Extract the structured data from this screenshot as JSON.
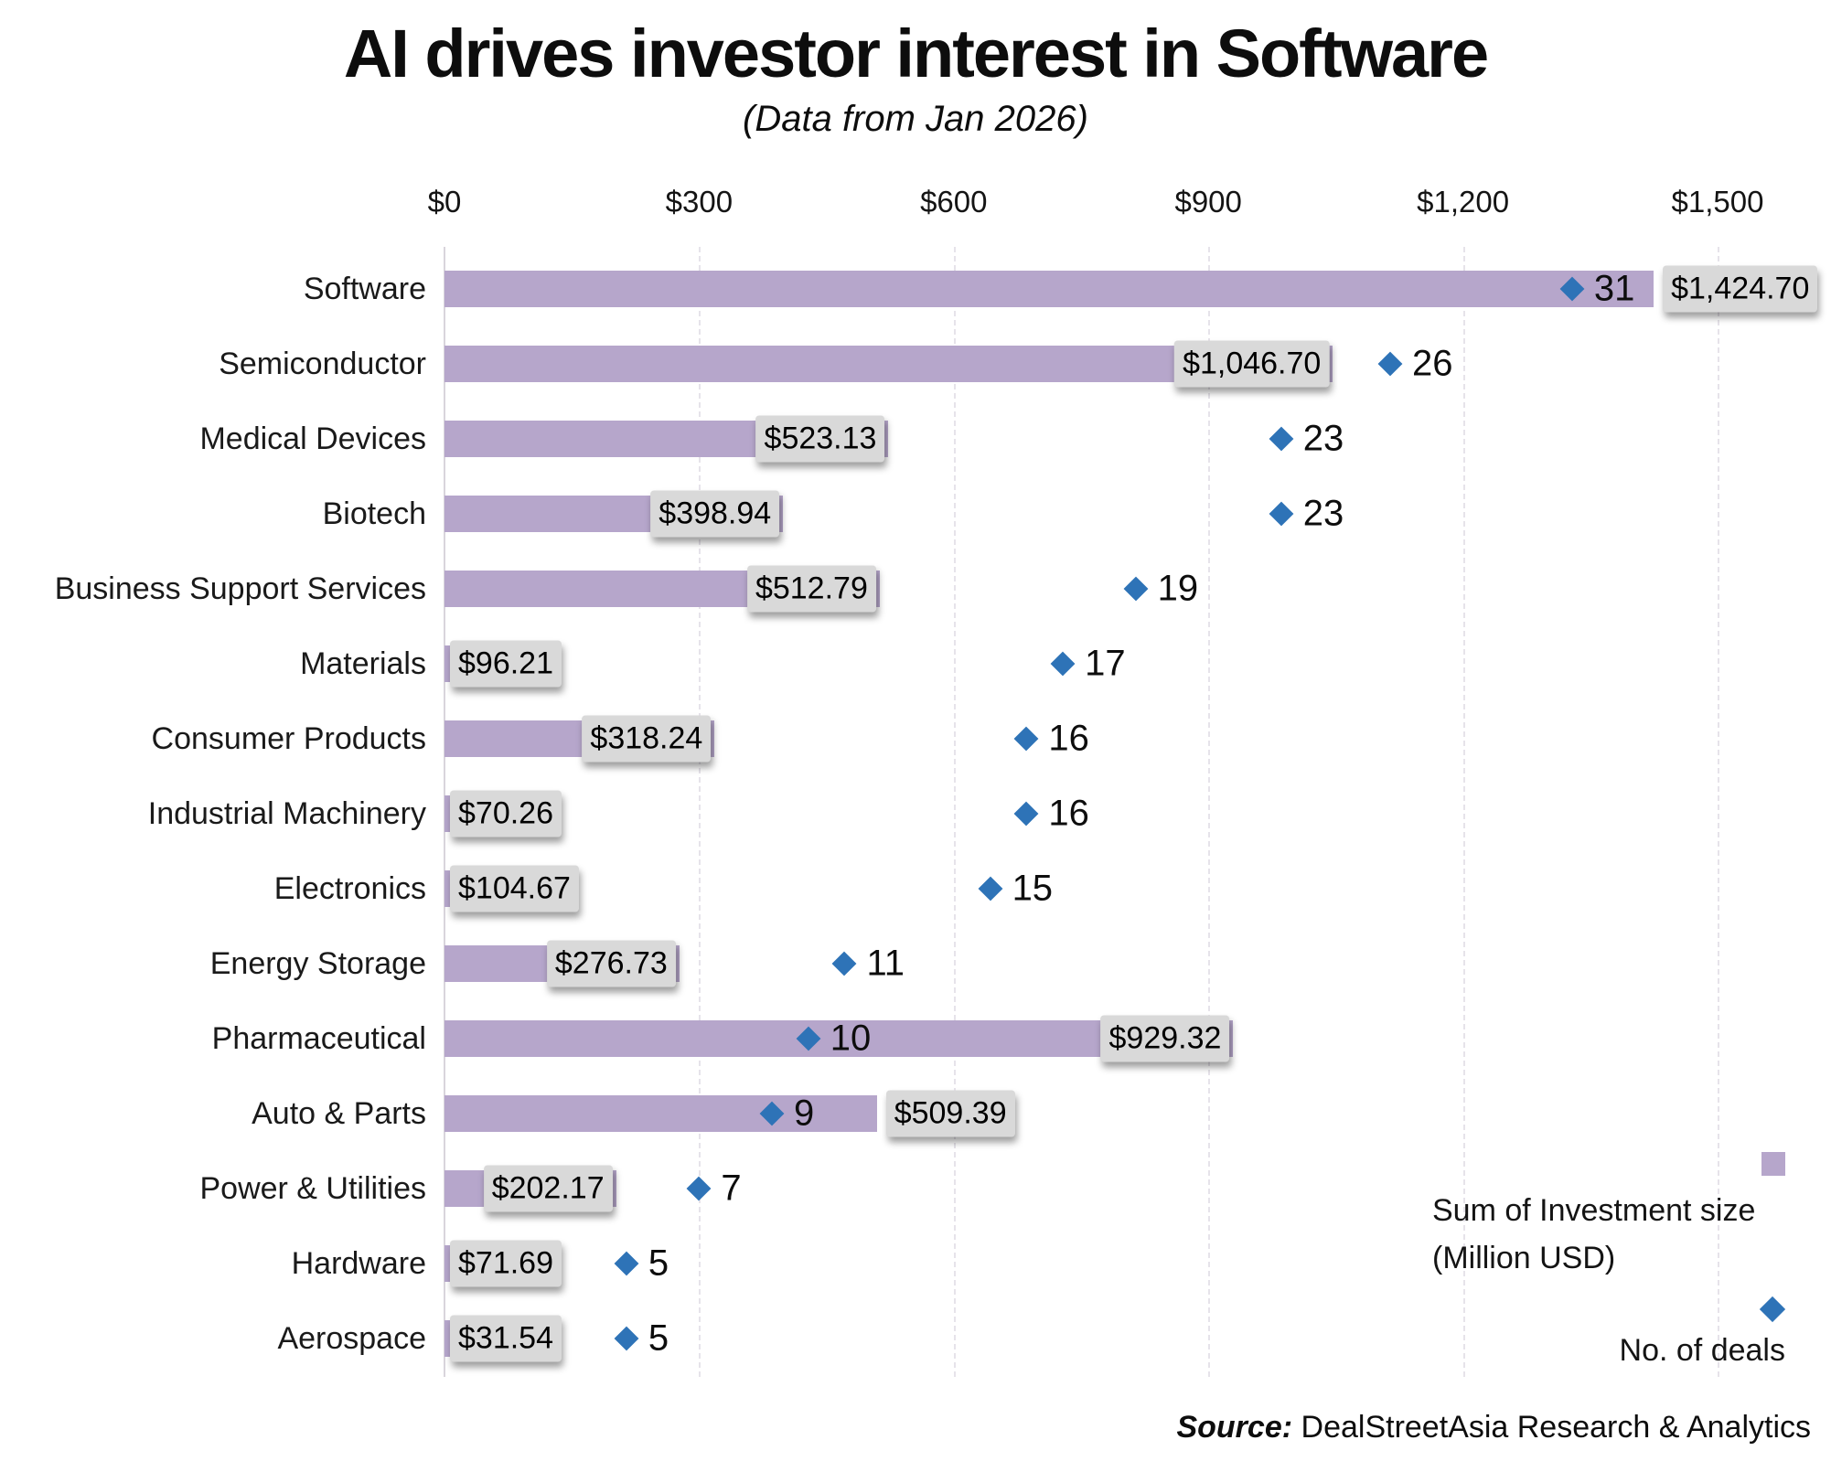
{
  "title": "AI drives investor interest in Software",
  "subtitle": "(Data from Jan 2026)",
  "source": {
    "prefix": "Source:",
    "text": "DealStreetAsia Research & Analytics"
  },
  "legend": {
    "investment_label_line1": "Sum of Investment size",
    "investment_label_line2": "(Million USD)",
    "deals_label": "No. of deals"
  },
  "colors": {
    "bar": "#b6a6cb",
    "diamond": "#2e73b7",
    "value_box_bg": "#d9d9d9",
    "grid": "#e6e3ea",
    "axis": "#d9d5dc",
    "text": "#111111"
  },
  "chart_data": {
    "type": "bar",
    "orientation": "horizontal",
    "title": "AI drives investor interest in Software",
    "subtitle": "(Data from Jan 2026)",
    "categories": [
      "Software",
      "Semiconductor",
      "Medical Devices",
      "Biotech",
      "Business Support Services",
      "Materials",
      "Consumer Products",
      "Industrial Machinery",
      "Electronics",
      "Energy Storage",
      "Pharmaceutical",
      "Auto & Parts",
      "Power & Utilities",
      "Hardware",
      "Aerospace"
    ],
    "series": [
      {
        "name": "Sum of Investment size (Million USD)",
        "marker": "bar",
        "values": [
          1424.7,
          1046.7,
          523.13,
          398.94,
          512.79,
          96.21,
          318.24,
          70.26,
          104.67,
          276.73,
          929.32,
          509.39,
          202.17,
          71.69,
          31.54
        ],
        "labels": [
          "$1,424.70",
          "$1,046.70",
          "$523.13",
          "$398.94",
          "$512.79",
          "$96.21",
          "$318.24",
          "$70.26",
          "$104.67",
          "$276.73",
          "$929.32",
          "$509.39",
          "$202.17",
          "$71.69",
          "$31.54"
        ],
        "label_placements": [
          "outside",
          "inside",
          "inside",
          "inside",
          "inside",
          "start",
          "inside",
          "start",
          "start",
          "inside",
          "inside",
          "outside",
          "inside",
          "start",
          "start"
        ]
      },
      {
        "name": "No. of deals",
        "marker": "diamond",
        "values": [
          31,
          26,
          23,
          23,
          19,
          17,
          16,
          16,
          15,
          11,
          10,
          9,
          7,
          5,
          5
        ]
      }
    ],
    "x_axis": {
      "min": 0,
      "max": 1500,
      "ticks": [
        "$0",
        "$300",
        "$600",
        "$900",
        "$1,200",
        "$1,500"
      ],
      "gridlines": "vertical-dashed"
    },
    "deals_axis": {
      "min": 0,
      "max": 35,
      "visible": false
    },
    "legend_position": "bottom-right"
  }
}
